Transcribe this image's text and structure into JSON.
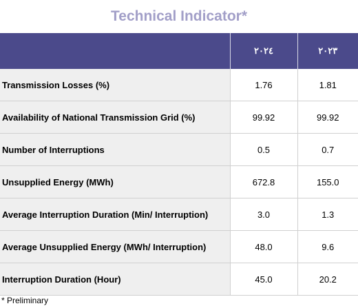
{
  "title": "Technical Indicator*",
  "columns": {
    "label": "",
    "year1": "٢٠٢٤",
    "year2": "٢٠٢٣"
  },
  "rows": [
    {
      "label": "Transmission Losses (%)",
      "y2024": "1.76",
      "y2023": "1.81"
    },
    {
      "label": "Availability of National Transmission Grid (%)",
      "y2024": "99.92",
      "y2023": "99.92"
    },
    {
      "label": "Number of Interruptions",
      "y2024": "0.5",
      "y2023": "0.7"
    },
    {
      "label": "Unsupplied Energy (MWh)",
      "y2024": "672.8",
      "y2023": "155.0"
    },
    {
      "label": "Average Interruption Duration (Min/ Interruption)",
      "y2024": "3.0",
      "y2023": "1.3"
    },
    {
      "label": "Average Unsupplied Energy (MWh/ Interruption)",
      "y2024": "48.0",
      "y2023": "9.6"
    },
    {
      "label": "Interruption Duration (Hour)",
      "y2024": "45.0",
      "y2023": "20.2"
    }
  ],
  "footnote": "* Preliminary",
  "colors": {
    "title": "#a29fc8",
    "header_bg": "#4b4a8b",
    "label_bg": "#efefef"
  }
}
